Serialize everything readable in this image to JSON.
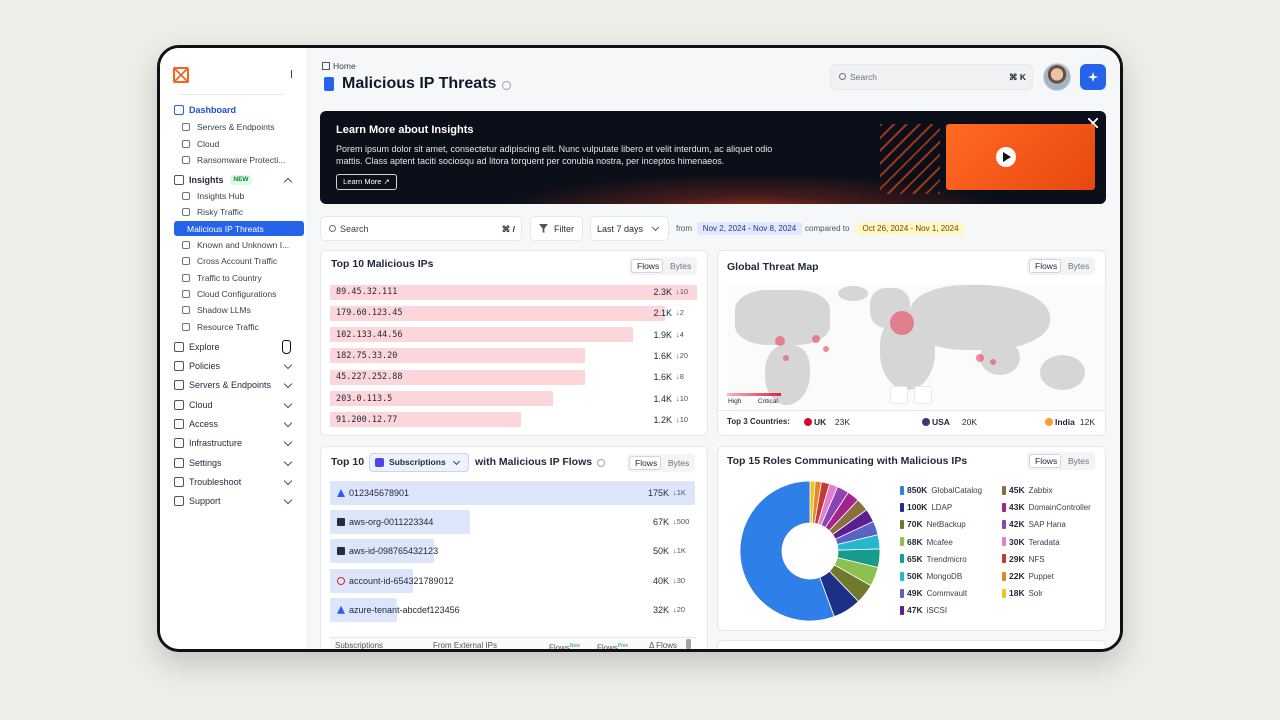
{
  "sidebar": {
    "nav": [
      {
        "label": "Dashboard",
        "children": [
          "Servers & Endpoints",
          "Cloud",
          "Ransomware Protecti..."
        ]
      },
      {
        "label": "Insights",
        "badge": "NEW",
        "children": [
          "Insights Hub",
          "Risky Traffic",
          "Malicious IP Threats",
          "Known and Unknown I...",
          "Cross Account Traffic",
          "Traffic to Country",
          "Cloud Configurations",
          "Shadow LLMs",
          "Resource Traffic"
        ]
      },
      {
        "label": "Explore"
      },
      {
        "label": "Policies"
      },
      {
        "label": "Servers & Endpoints"
      },
      {
        "label": "Cloud"
      },
      {
        "label": "Access"
      },
      {
        "label": "Infrastructure"
      },
      {
        "label": "Settings"
      },
      {
        "label": "Troubleshoot"
      },
      {
        "label": "Support"
      }
    ]
  },
  "header": {
    "breadcrumb": "Home",
    "title": "Malicious IP Threats",
    "search": "Search",
    "shortcut": "⌘ K"
  },
  "banner": {
    "title": "Learn More about Insights",
    "text": "Porem ipsum dolor sit amet, consectetur adipiscing elit. Nunc vulputate libero et velit interdum, ac aliquet odio mattis. Class aptent taciti sociosqu ad litora torquent per conubia nostra, per inceptos himenaeos.",
    "button": "Learn More ↗"
  },
  "toolbar": {
    "search": "Search",
    "shortcut": "⌘ /",
    "filter": "Filter",
    "range": "Last 7 days",
    "from": "from",
    "current": "Nov 2, 2024 - Nov 8, 2024",
    "compared": "compared to",
    "previous": "Oct 26, 2024 - Nov 1, 2024"
  },
  "top_ips": {
    "title": "Top 10 Malicious IPs",
    "toggle": [
      "Flows",
      "Bytes"
    ],
    "rows": [
      {
        "ip": "89.45.32.111",
        "flows": 2300,
        "flows_label": "2.3K",
        "change": "↓10"
      },
      {
        "ip": "179.60.123.45",
        "flows": 2100,
        "flows_label": "2.1K",
        "change": "↓2"
      },
      {
        "ip": "102.133.44.56",
        "flows": 1900,
        "flows_label": "1.9K",
        "change": "↓4"
      },
      {
        "ip": "182.75.33.20",
        "flows": 1600,
        "flows_label": "1.6K",
        "change": "↓20"
      },
      {
        "ip": "45.227.252.88",
        "flows": 1600,
        "flows_label": "1.6K",
        "change": "↓8"
      },
      {
        "ip": "203.0.113.5",
        "flows": 1400,
        "flows_label": "1.4K",
        "change": "↓10"
      },
      {
        "ip": "91.200.12.77",
        "flows": 1200,
        "flows_label": "1.2K",
        "change": "↓10"
      }
    ]
  },
  "map": {
    "title": "Global Threat Map",
    "toggle": [
      "Flows",
      "Bytes"
    ],
    "legend": [
      "High",
      "Critical"
    ],
    "top_label": "Top 3 Countries:",
    "countries": [
      {
        "name": "UK",
        "value": "23K"
      },
      {
        "name": "USA",
        "value": "20K"
      },
      {
        "name": "India",
        "value": "12K"
      }
    ]
  },
  "subscriptions": {
    "prefix": "Top 10",
    "dropdown": "Subscriptions",
    "suffix": "with Malicious IP Flows",
    "toggle": [
      "Flows",
      "Bytes"
    ],
    "rows": [
      {
        "name": "012345678901",
        "flows": 175000,
        "flows_label": "175K",
        "change": "↓1K"
      },
      {
        "name": "aws-org-0011223344",
        "flows": 67000,
        "flows_label": "67K",
        "change": "↓500"
      },
      {
        "name": "aws-id-098765432123",
        "flows": 50000,
        "flows_label": "50K",
        "change": "↓1K"
      },
      {
        "name": "account-id-654321789012",
        "flows": 40000,
        "flows_label": "40K",
        "change": "↓30"
      },
      {
        "name": "azure-tenant-abcdef123456",
        "flows": 32000,
        "flows_label": "32K",
        "change": "↓20"
      }
    ],
    "columns": [
      {
        "label": "Subscriptions"
      },
      {
        "label": "From External IPs"
      },
      {
        "label": "Flows",
        "sup": "Now"
      },
      {
        "label": "Flows",
        "sup": "Prev"
      },
      {
        "label": "Δ Flows"
      }
    ]
  },
  "roles": {
    "title": "Top 15 Roles Communicating with Malicious IPs",
    "toggle": [
      "Flows",
      "Bytes"
    ],
    "chart_data": {
      "type": "pie",
      "donut": true,
      "categories": [
        "GlobalCatalog",
        "LDAP",
        "NetBackup",
        "Mcafee",
        "Trendmicro",
        "MongoDB",
        "Commvault",
        "iSCSI",
        "Zabbix",
        "DomainController",
        "SAP Hana",
        "Teradata",
        "NFS",
        "Puppet",
        "Solr"
      ],
      "values": [
        850000,
        100000,
        70000,
        68000,
        65000,
        50000,
        49000,
        47000,
        45000,
        43000,
        42000,
        30000,
        29000,
        22000,
        18000
      ],
      "value_labels": [
        "850K",
        "100K",
        "70K",
        "68K",
        "65K",
        "50K",
        "49K",
        "47K",
        "45K",
        "43K",
        "42K",
        "30K",
        "29K",
        "22K",
        "18K"
      ],
      "colors": [
        "#2f7fe8",
        "#1d2f86",
        "#6f7a2c",
        "#8cc152",
        "#169b8c",
        "#26b6d0",
        "#5a63c4",
        "#5b1f91",
        "#8a6f3c",
        "#a5248c",
        "#8b44b3",
        "#e27fd0",
        "#c63a36",
        "#e8842c",
        "#f0c419"
      ]
    }
  }
}
